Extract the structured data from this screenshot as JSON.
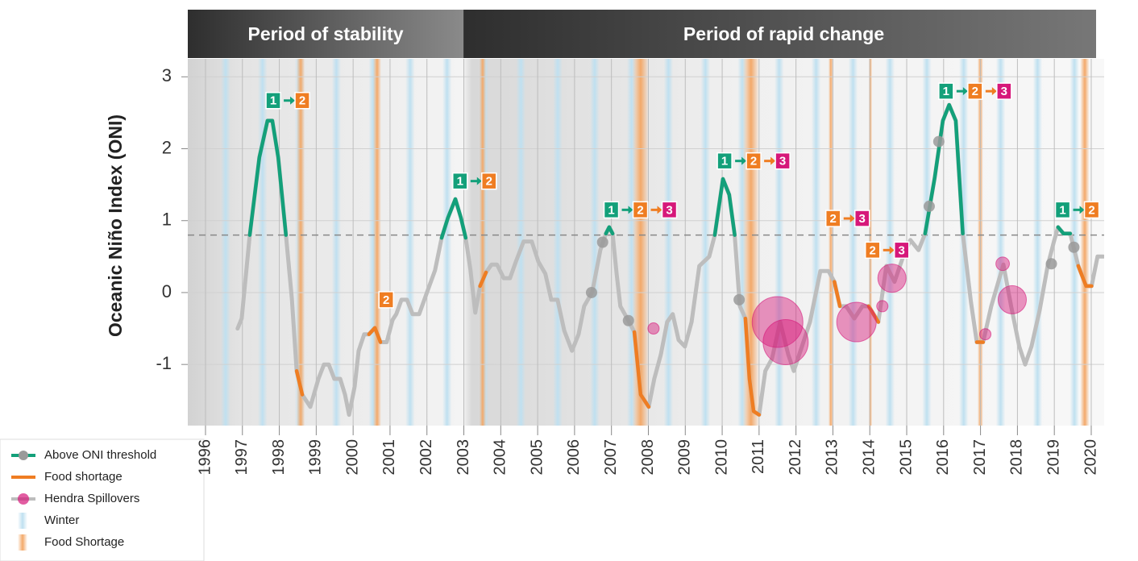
{
  "chart_data": {
    "type": "line",
    "ylabel": "Oceanic Niño Index (ONI)",
    "xlim": [
      1995.52,
      2020.35
    ],
    "ylim": [
      -1.85,
      3.25
    ],
    "xticks": [
      1996,
      1997,
      1998,
      1999,
      2000,
      2001,
      2002,
      2003,
      2004,
      2005,
      2006,
      2007,
      2008,
      2009,
      2010,
      2011,
      2012,
      2013,
      2014,
      2015,
      2016,
      2017,
      2018,
      2019,
      2020
    ],
    "yticks": [
      -1,
      0,
      1,
      2,
      3
    ],
    "grid": true,
    "threshold": 0.8,
    "periods": [
      {
        "label": "Period of stability",
        "start": 1995.52,
        "end": 2002.99
      },
      {
        "label": "Period of rapid change",
        "start": 2002.99,
        "end": 2020.35
      }
    ],
    "series": [
      {
        "color": "#bdbdbd",
        "x": [
          1996.87,
          1996.98,
          1997.2,
          1997.46,
          1997.68,
          1997.81,
          1997.97,
          1998.18,
          1998.34,
          1998.47,
          1998.62,
          1998.84,
          1999.06,
          1999.21,
          1999.34,
          1999.49,
          1999.65,
          1999.78,
          1999.89,
          2000.04,
          2000.15,
          2000.3,
          2000.43,
          2000.59,
          2000.74,
          2000.91,
          2001.07,
          2001.17,
          2001.31,
          2001.46,
          2001.61,
          2001.79,
          2002.0,
          2002.22,
          2002.4,
          2002.57,
          2002.77,
          2002.92,
          2003.05,
          2003.18,
          2003.31,
          2003.44,
          2003.6,
          2003.75,
          2003.9,
          2004.08,
          2004.25,
          2004.41,
          2004.62,
          2004.84,
          2005.02,
          2005.21,
          2005.37,
          2005.54,
          2005.72,
          2005.93,
          2006.11,
          2006.26,
          2006.48,
          2006.7,
          2006.85,
          2006.94,
          2007.03,
          2007.14,
          2007.24,
          2007.46,
          2007.62,
          2007.79,
          2008.01,
          2008.16,
          2008.34,
          2008.51,
          2008.66,
          2008.82,
          2008.99,
          2009.17,
          2009.38,
          2009.65,
          2009.8,
          2010.02,
          2010.19,
          2010.34,
          2010.48,
          2010.63,
          2010.74,
          2010.85,
          2011.0,
          2011.17,
          2011.35,
          2011.57,
          2011.79,
          2011.94,
          2012.16,
          2012.38,
          2012.66,
          2012.88,
          2013.04,
          2013.19,
          2013.36,
          2013.58,
          2013.8,
          2013.97,
          2014.23,
          2014.45,
          2014.67,
          2014.89,
          2015.1,
          2015.32,
          2015.5,
          2015.76,
          2015.98,
          2016.15,
          2016.33,
          2016.52,
          2016.74,
          2016.9,
          2017.07,
          2017.29,
          2017.62,
          2017.83,
          2018.05,
          2018.21,
          2018.38,
          2018.6,
          2018.82,
          2018.99,
          2019.1,
          2019.25,
          2019.43,
          2019.65,
          2019.86,
          2020.01,
          2020.17,
          2020.33
        ],
        "values": [
          -0.5,
          -0.36,
          0.8,
          1.88,
          2.39,
          2.39,
          1.88,
          0.8,
          -0.08,
          -1.09,
          -1.42,
          -1.59,
          -1.2,
          -1.0,
          -1.0,
          -1.2,
          -1.2,
          -1.42,
          -1.7,
          -1.31,
          -0.81,
          -0.58,
          -0.58,
          -0.49,
          -0.69,
          -0.69,
          -0.38,
          -0.3,
          -0.1,
          -0.1,
          -0.3,
          -0.3,
          0,
          0.31,
          0.76,
          1.04,
          1.3,
          1.04,
          0.76,
          0.31,
          -0.28,
          0.09,
          0.28,
          0.39,
          0.39,
          0.2,
          0.2,
          0.43,
          0.71,
          0.71,
          0.43,
          0.26,
          -0.1,
          -0.1,
          -0.53,
          -0.81,
          -0.58,
          -0.19,
          0.01,
          0.59,
          0.82,
          0.91,
          0.82,
          0.26,
          -0.19,
          -0.39,
          -0.55,
          -1.42,
          -1.59,
          -1.2,
          -0.86,
          -0.41,
          -0.3,
          -0.66,
          -0.75,
          -0.41,
          0.37,
          0.5,
          0.8,
          1.58,
          1.36,
          0.8,
          -0.19,
          -0.36,
          -1.2,
          -1.65,
          -1.7,
          -1.09,
          -0.92,
          -0.41,
          -0.86,
          -1.09,
          -0.75,
          -0.41,
          0.3,
          0.3,
          0.15,
          -0.19,
          -0.19,
          -0.36,
          -0.19,
          -0.19,
          -0.41,
          0.37,
          0.15,
          0.48,
          0.73,
          0.59,
          0.82,
          1.6,
          2.39,
          2.61,
          2.39,
          0.82,
          -0.13,
          -0.69,
          -0.69,
          -0.19,
          0.39,
          -0.19,
          -0.75,
          -1.0,
          -0.75,
          -0.25,
          0.37,
          0.71,
          0.91,
          0.82,
          0.82,
          0.37,
          0.09,
          0.09,
          0.5,
          0.5
        ]
      },
      {
        "name": "Above ONI threshold",
        "color": "#13a07a",
        "x": [
          1997.2,
          1997.46,
          1997.68,
          1997.81,
          1997.97,
          1998.18,
          null,
          2002.4,
          2002.57,
          2002.77,
          2002.92,
          2003.05,
          null,
          2006.85,
          2006.94,
          2007.03,
          null,
          2009.8,
          2010.02,
          2010.19,
          2010.34,
          null,
          2015.5,
          2015.76,
          2015.98,
          2016.15,
          2016.33,
          2016.52,
          null,
          2019.1,
          2019.25,
          2019.43
        ],
        "values": [
          0.8,
          1.88,
          2.39,
          2.39,
          1.88,
          0.8,
          null,
          0.76,
          1.04,
          1.3,
          1.04,
          0.76,
          null,
          0.82,
          0.91,
          0.82,
          null,
          0.8,
          1.58,
          1.36,
          0.8,
          null,
          0.82,
          1.6,
          2.39,
          2.61,
          2.39,
          0.82,
          null,
          0.91,
          0.82,
          0.82
        ]
      },
      {
        "name": "Food shortage",
        "color": "#ef7d22",
        "x": [
          1998.47,
          1998.62,
          null,
          2000.43,
          2000.59,
          2000.74,
          null,
          2003.44,
          2003.6,
          null,
          2007.62,
          2007.79,
          2008.01,
          null,
          2010.63,
          2010.74,
          2010.85,
          2011.0,
          null,
          2013.04,
          2013.19,
          null,
          2013.97,
          2014.23,
          null,
          2016.9,
          2017.07,
          null,
          2019.65,
          2019.86,
          2020.01
        ],
        "values": [
          -1.09,
          -1.42,
          null,
          -0.58,
          -0.49,
          -0.69,
          null,
          0.09,
          0.28,
          null,
          -0.55,
          -1.42,
          -1.59,
          null,
          -0.36,
          -1.2,
          -1.65,
          -1.7,
          null,
          0.15,
          -0.19,
          null,
          -0.19,
          -0.41,
          null,
          -0.69,
          -0.69,
          null,
          0.37,
          0.09,
          0.09
        ]
      }
    ],
    "markers": {
      "color": "#9a9a9a",
      "x": [
        2006.46,
        2006.76,
        2007.46,
        2010.46,
        2015.61,
        2015.87,
        2018.92,
        2019.53
      ],
      "values": [
        0,
        0.7,
        -0.39,
        -0.1,
        1.2,
        2.1,
        0.4,
        0.63
      ]
    },
    "spillovers": {
      "name": "Hendra Spillovers",
      "color": "#d6187a",
      "x": [
        2008.14,
        2011.5,
        2011.72,
        2013.64,
        2014.34,
        2014.6,
        2017.13,
        2017.6,
        2017.86
      ],
      "values": [
        -0.5,
        -0.41,
        -0.69,
        -0.41,
        -0.19,
        0.2,
        -0.58,
        0.4,
        -0.1
      ],
      "sizes": [
        1,
        4.5,
        4,
        3.5,
        1,
        2.5,
        1,
        1.2,
        2.5
      ]
    },
    "winter": {
      "name": "Winter",
      "color": "#bfe0f0",
      "bands": [
        [
          1996.42,
          1996.67
        ],
        [
          1997.42,
          1997.67
        ],
        [
          1998.42,
          1998.67
        ],
        [
          1999.42,
          1999.67
        ],
        [
          2000.42,
          2000.67
        ],
        [
          2001.42,
          2001.67
        ],
        [
          2002.42,
          2002.67
        ],
        [
          2003.42,
          2003.67
        ],
        [
          2004.42,
          2004.67
        ],
        [
          2005.42,
          2005.67
        ],
        [
          2006.42,
          2006.67
        ],
        [
          2007.42,
          2007.67
        ],
        [
          2008.42,
          2008.67
        ],
        [
          2009.42,
          2009.67
        ],
        [
          2010.42,
          2010.67
        ],
        [
          2011.42,
          2011.67
        ],
        [
          2012.42,
          2012.67
        ],
        [
          2013.42,
          2013.67
        ],
        [
          2014.42,
          2014.67
        ],
        [
          2015.42,
          2015.67
        ],
        [
          2016.42,
          2016.67
        ],
        [
          2017.42,
          2017.67
        ],
        [
          2018.42,
          2018.67
        ],
        [
          2019.42,
          2019.67
        ]
      ]
    },
    "food_shortage_periods": {
      "name": "Food Shortage",
      "color": "#f3a96a",
      "bands": [
        [
          1998.47,
          1998.69
        ],
        [
          2000.54,
          2000.76
        ],
        [
          2003.42,
          2003.6
        ],
        [
          2007.57,
          2008.01
        ],
        [
          2010.56,
          2011.0
        ],
        [
          2012.88,
          2013.01
        ],
        [
          2013.97,
          2014.06
        ],
        [
          2016.92,
          2017.07
        ],
        [
          2019.7,
          2019.95
        ]
      ]
    },
    "step_colors": {
      "1": "#13a07a",
      "2": "#ef7d22",
      "3": "#d6187a"
    },
    "annotations": [
      {
        "x": 1997.64,
        "y": 2.67,
        "steps": [
          "1",
          "2"
        ]
      },
      {
        "x": 2000.7,
        "y": -0.1,
        "steps": [
          "2"
        ]
      },
      {
        "x": 2002.7,
        "y": 1.55,
        "steps": [
          "1",
          "2"
        ]
      },
      {
        "x": 2006.8,
        "y": 1.15,
        "steps": [
          "1",
          "2",
          "3"
        ]
      },
      {
        "x": 2009.87,
        "y": 1.83,
        "steps": [
          "1",
          "2",
          "3"
        ]
      },
      {
        "x": 2012.81,
        "y": 1.03,
        "steps": [
          "2",
          "3"
        ]
      },
      {
        "x": 2013.88,
        "y": 0.59,
        "steps": [
          "2",
          "3"
        ]
      },
      {
        "x": 2015.87,
        "y": 2.8,
        "steps": [
          "1",
          "2",
          "3"
        ]
      },
      {
        "x": 2019.03,
        "y": 1.15,
        "steps": [
          "1",
          "2"
        ]
      }
    ]
  }
}
